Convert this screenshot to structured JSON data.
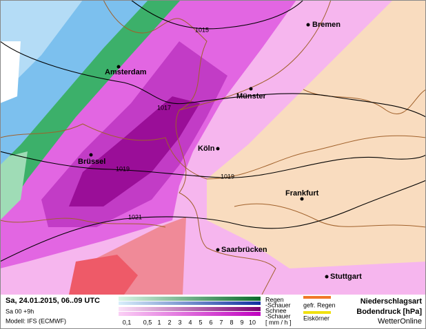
{
  "map": {
    "cities": [
      "Bremen",
      "Amsterdam",
      "Münster",
      "Köln",
      "Brüssel",
      "Frankfurt",
      "Saarbrücken",
      "Stuttgart"
    ],
    "isobars": [
      1015,
      1017,
      1019,
      1019,
      1021
    ]
  },
  "footer": {
    "date": "Sa, 24.01.2015, 06..09 UTC",
    "run": "Sa 00 +9h",
    "model": "Modell: IFS (ECMWF)",
    "legend": {
      "rows": [
        "Regen",
        "-Schauer",
        "Schnee",
        "-Schauer"
      ],
      "scale": [
        "0,1",
        "0,5",
        "1",
        "2",
        "3",
        "4",
        "5",
        "6",
        "7",
        "8",
        "9",
        "10"
      ],
      "unit": "[ mm / h ]",
      "extra": [
        "gefr. Regen",
        "Eiskörner"
      ]
    },
    "title": [
      "Niederschlagsart",
      "Bodendruck [hPa]"
    ],
    "brand": "WetterOnline"
  }
}
